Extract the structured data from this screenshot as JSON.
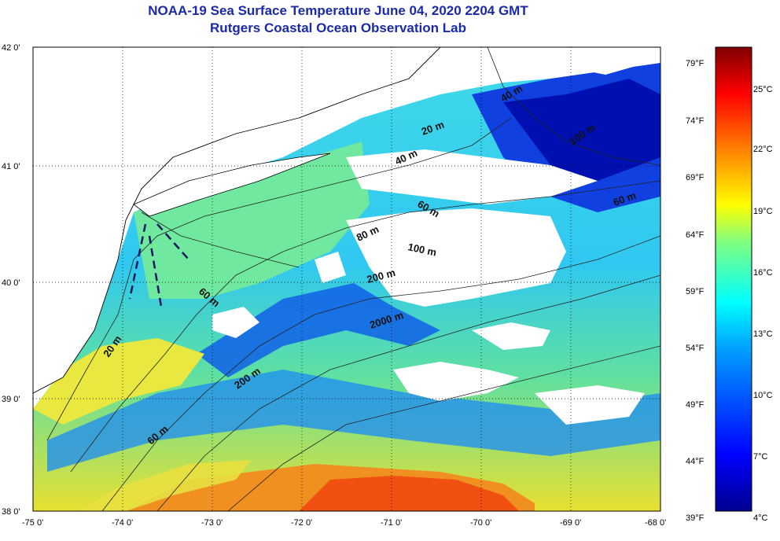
{
  "title_line1": "NOAA-19 Sea Surface Temperature June 04, 2020 2204 GMT",
  "title_line2": "Rutgers Coastal Ocean Observation Lab",
  "lat_labels": [
    "42 0'",
    "41 0'",
    "40 0'",
    "39 0'",
    "38 0'"
  ],
  "lon_labels": [
    "-75 0'",
    "-74 0'",
    "-73 0'",
    "-72 0'",
    "-71 0'",
    "-70 0'",
    "-69 0'",
    "-68 0'"
  ],
  "contour_labels": [
    "20 m",
    "40 m",
    "60 m",
    "40 m",
    "100 m",
    "60 m",
    "80 m",
    "100 m",
    "200 m",
    "2000 m",
    "60 m",
    "20 m",
    "200 m",
    "60 m"
  ],
  "colorbar": {
    "f_labels": [
      "79°F",
      "74°F",
      "69°F",
      "64°F",
      "59°F",
      "54°F",
      "49°F",
      "44°F",
      "39°F"
    ],
    "c_labels": [
      "25°C",
      "22°C",
      "19°C",
      "16°C",
      "13°C",
      "10°C",
      "7°C",
      "4°C"
    ],
    "colors": [
      "#00008f",
      "#0000ff",
      "#0080ff",
      "#00ffff",
      "#80ff80",
      "#ffff00",
      "#ff8000",
      "#ff0000",
      "#800000"
    ]
  }
}
